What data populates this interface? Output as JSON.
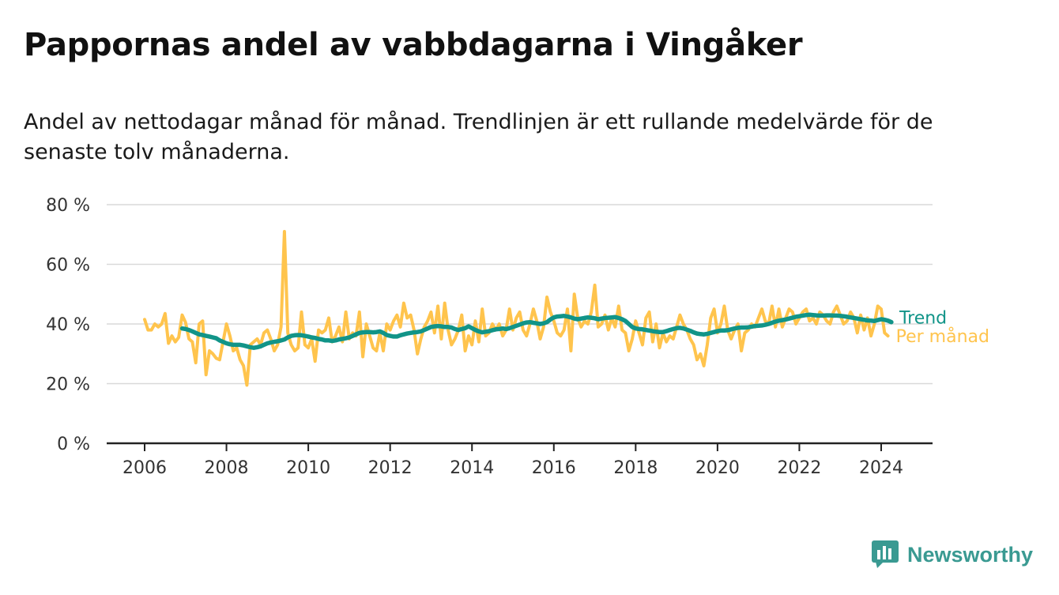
{
  "title": "Pappornas andel av vabbdagarna i Vingåker",
  "subtitle": "Andel av nettodagar månad för månad. Trendlinjen är ett rullande medelvärde för de senaste tolv månaderna.",
  "logo": {
    "text": "Newsworthy",
    "icon": "newsworthy-logo-icon",
    "color": "#3a9a92"
  },
  "chart_data": {
    "type": "line",
    "ylim": [
      0,
      80
    ],
    "xlim": [
      2005.5,
      2025.25
    ],
    "y_ticks": [
      0,
      20,
      40,
      60,
      80
    ],
    "y_tick_labels": [
      "0 %",
      "20 %",
      "40 %",
      "60 %",
      "80 %"
    ],
    "x_ticks": [
      2006,
      2008,
      2010,
      2012,
      2014,
      2016,
      2018,
      2020,
      2022,
      2024
    ],
    "x_tick_labels": [
      "2006",
      "2008",
      "2010",
      "2012",
      "2014",
      "2016",
      "2018",
      "2020",
      "2022",
      "2024"
    ],
    "grid": "horizontal",
    "start": "2006-01",
    "series": [
      {
        "name": "Per månad",
        "color": "#ffc44d",
        "values": [
          41.5,
          38,
          38,
          40,
          39,
          40,
          43.5,
          33.5,
          36,
          34,
          35.5,
          43,
          40.5,
          35,
          34,
          27,
          40,
          41,
          23,
          31,
          30,
          28.5,
          28,
          34,
          40,
          36,
          31,
          32,
          28,
          26,
          19.5,
          33,
          34,
          35,
          33,
          37,
          38,
          35,
          31,
          33,
          39,
          71,
          37,
          33,
          31,
          32,
          44,
          33,
          32,
          35,
          27.5,
          38,
          37,
          38,
          42,
          34,
          36,
          39,
          34,
          44,
          35,
          37,
          36,
          44,
          29,
          40,
          36,
          32,
          31,
          37,
          31,
          40,
          38,
          41,
          43,
          39,
          47,
          42,
          43,
          38,
          30,
          35,
          39,
          41,
          44,
          37,
          46,
          35,
          47,
          38,
          33,
          35,
          38,
          43,
          31,
          36,
          33,
          41,
          34,
          45,
          36,
          37,
          40,
          38,
          40,
          36,
          38,
          45,
          38,
          42,
          44,
          38,
          36,
          40,
          45,
          41,
          35,
          39,
          49,
          44,
          41,
          37,
          36,
          38,
          45,
          31,
          50,
          42,
          39,
          41,
          40,
          44,
          53,
          39,
          40,
          43,
          38,
          42,
          39,
          46,
          38,
          37,
          31,
          35,
          41,
          37,
          33,
          42,
          44,
          34,
          40,
          32,
          37,
          34,
          36,
          35,
          39,
          43,
          40,
          38,
          35,
          33,
          28,
          30,
          26,
          33,
          42,
          45,
          37,
          40,
          46,
          38,
          35,
          38,
          40,
          31,
          37,
          38,
          40,
          39,
          42,
          45,
          41,
          40,
          46,
          39,
          45,
          39,
          42,
          45,
          44,
          40,
          42,
          44,
          45,
          41,
          42,
          40,
          44,
          43,
          41,
          40,
          44,
          46,
          43,
          40,
          41,
          44,
          42,
          37,
          43,
          38,
          42,
          36,
          40,
          46,
          45,
          37,
          36
        ]
      },
      {
        "name": "Trend",
        "color": "#119488",
        "start": "2006-12",
        "values": [
          38.5,
          38.3,
          38,
          37.5,
          37,
          36.5,
          36.3,
          36,
          35.8,
          35.5,
          35.2,
          34.5,
          34,
          33.5,
          33.2,
          33,
          33,
          33,
          32.8,
          32.5,
          32.2,
          32,
          32.2,
          32.5,
          33,
          33.5,
          33.8,
          34,
          34.2,
          34.5,
          34.8,
          35.5,
          36,
          36.2,
          36.3,
          36.2,
          36,
          35.8,
          35.5,
          35.3,
          35,
          34.8,
          34.5,
          34.5,
          34.3,
          34.5,
          34.8,
          35,
          35.2,
          35.5,
          36,
          36.5,
          37,
          37.2,
          37.3,
          37.3,
          37.2,
          37.3,
          37.5,
          37,
          36.3,
          36,
          35.8,
          35.8,
          36.2,
          36.5,
          36.8,
          37,
          37.2,
          37.3,
          37.5,
          38,
          38.5,
          39,
          39.2,
          39.3,
          39.2,
          39,
          39,
          38.8,
          38.3,
          38,
          38.3,
          38.6,
          39.2,
          38.6,
          38,
          37.5,
          37.2,
          37.4,
          37.6,
          37.9,
          38.2,
          38.3,
          38.5,
          38.3,
          38.6,
          39,
          39.4,
          39.8,
          40.2,
          40.5,
          40.6,
          40.4,
          40.2,
          40,
          40.2,
          40.6,
          41.5,
          42.2,
          42.5,
          42.6,
          42.7,
          42.5,
          42.2,
          41.8,
          41.6,
          41.8,
          42,
          42.2,
          42.1,
          41.9,
          41.6,
          41.8,
          42,
          42.1,
          42.2,
          42.3,
          42,
          41.6,
          41,
          40,
          39,
          38.5,
          38.3,
          38.2,
          38,
          37.8,
          37.6,
          37.4,
          37.3,
          37.3,
          37.6,
          38,
          38.3,
          38.6,
          38.7,
          38.5,
          38.1,
          37.7,
          37.2,
          36.8,
          36.6,
          36.5,
          36.7,
          37,
          37.3,
          37.6,
          37.8,
          37.8,
          37.9,
          38.2,
          38.5,
          38.7,
          38.8,
          38.8,
          38.9,
          39.1,
          39.3,
          39.4,
          39.5,
          39.7,
          40,
          40.4,
          40.8,
          41.1,
          41.3,
          41.5,
          41.8,
          42.1,
          42.4,
          42.6,
          42.8,
          43,
          43.1,
          43,
          42.9,
          42.8,
          42.8,
          42.9,
          42.9,
          42.8,
          42.8,
          42.7,
          42.6,
          42.4,
          42.2,
          42,
          41.8,
          41.6,
          41.4,
          41.2,
          41.1,
          41,
          41.3,
          41.6,
          41.4,
          41.1,
          40.6
        ]
      }
    ],
    "line_labels": [
      "Trend",
      "Per månad"
    ]
  }
}
